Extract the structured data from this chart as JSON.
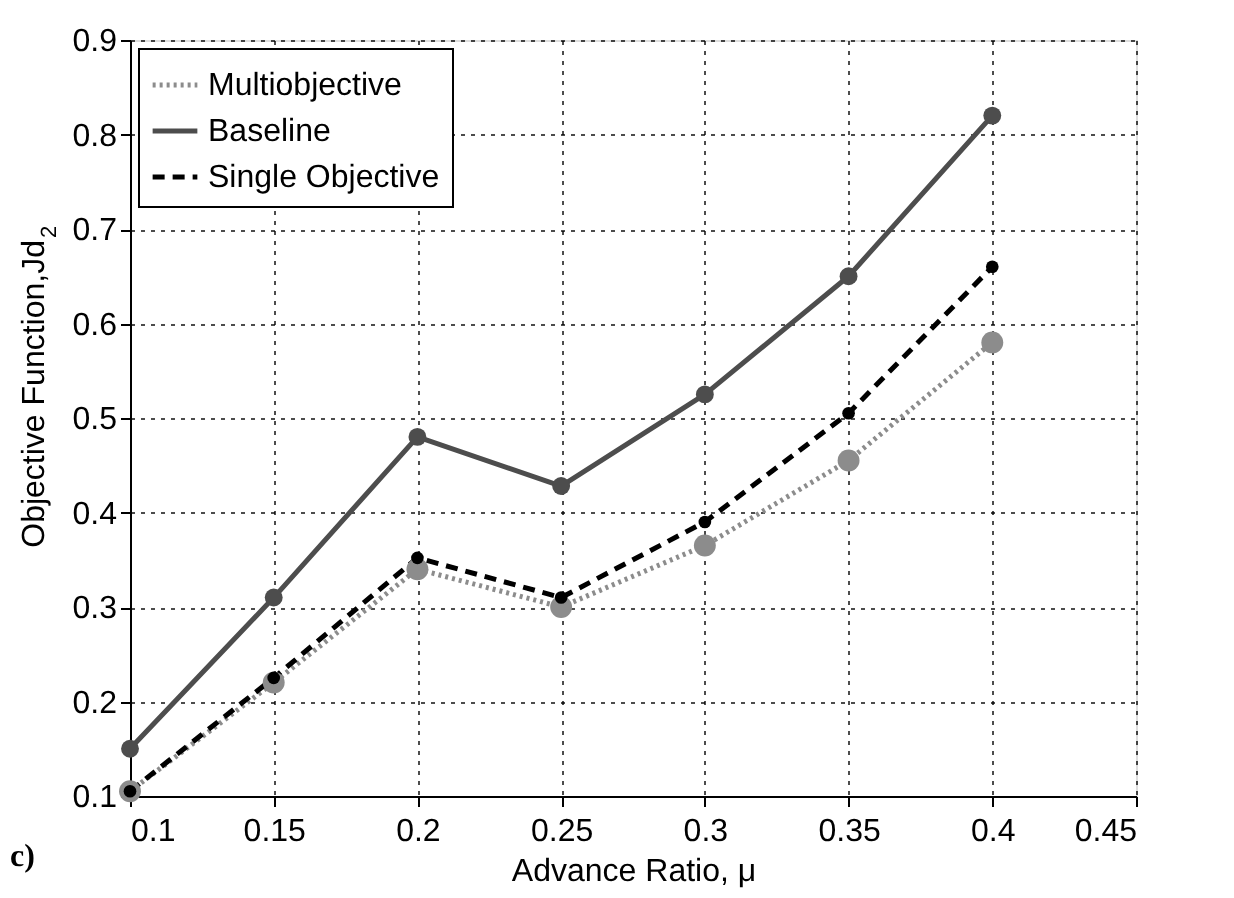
{
  "chart_data": {
    "type": "line",
    "xlabel": "Advance Ratio, μ",
    "ylabel": "Objective Function,Jd$_{2}$",
    "x": [
      0.1,
      0.15,
      0.2,
      0.25,
      0.3,
      0.35,
      0.4
    ],
    "series": [
      {
        "name": "Multiobjective",
        "color": "#8c8c8c",
        "line_style": "dotted",
        "values": [
          0.105,
          0.22,
          0.34,
          0.3,
          0.365,
          0.455,
          0.58
        ]
      },
      {
        "name": "Baseline",
        "color": "#4d4d4d",
        "line_style": "solid",
        "values": [
          0.15,
          0.31,
          0.48,
          0.428,
          0.525,
          0.65,
          0.82
        ]
      },
      {
        "name": "Single Objective",
        "color": "#000000",
        "line_style": "dashed",
        "values": [
          0.105,
          0.225,
          0.352,
          0.31,
          0.39,
          0.505,
          0.66
        ]
      }
    ],
    "xlim": [
      0.1,
      0.45
    ],
    "xticks": [
      0.1,
      0.15,
      0.2,
      0.25,
      0.3,
      0.35,
      0.4,
      0.45
    ],
    "ylim": [
      0.1,
      0.9
    ],
    "yticks": [
      0.1,
      0.2,
      0.3,
      0.4,
      0.5,
      0.6,
      0.7,
      0.8,
      0.9
    ],
    "grid": true,
    "legend": "top left",
    "marker": "circle",
    "annotations": [
      "c)"
    ]
  }
}
